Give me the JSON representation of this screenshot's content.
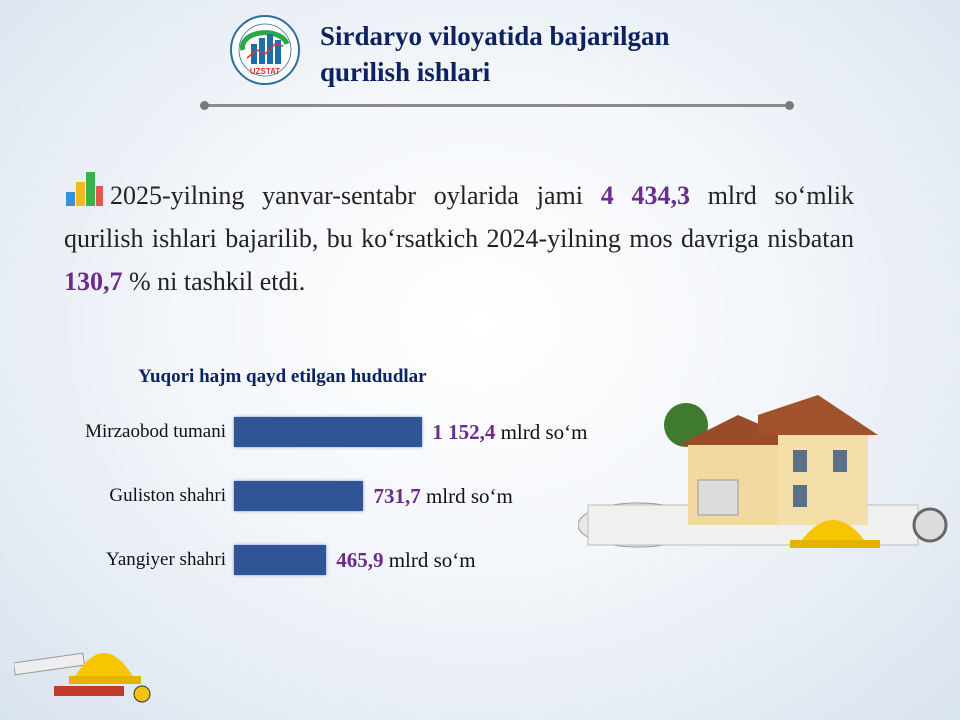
{
  "header": {
    "logo_text": "UZSTAT",
    "logo_ring_text": "SIRDARYO VILOYATI STATISTIKA BOSHQARMASI",
    "title_line1": "Sirdaryo viloyatida bajarilgan",
    "title_line2": "qurilish ishlari"
  },
  "summary": {
    "icon": "bar-chart-icon",
    "part1": "2025-yilning yanvar-sentabr oylarida jami ",
    "total": "4 434,3",
    "part2": " mlrd so‘mlik qurilish ishlari bajarilib, bu ko‘rsatkich 2024-yilning mos davriga nisbatan ",
    "percent": "130,7",
    "part3": " % ni tashkil etdi."
  },
  "colors": {
    "title": "#0d2260",
    "highlight": "#6a2c8f",
    "bar": "#2f5597"
  },
  "chart_data": {
    "type": "bar",
    "orientation": "horizontal",
    "title": "Yuqori hajm qayd etilgan hududlar",
    "categories": [
      "Mirzaobod tumani",
      "Guliston shahri",
      "Yangiyer shahri"
    ],
    "values": [
      1152.4,
      731.7,
      465.9
    ],
    "value_labels": [
      "1 152,4",
      "731,7",
      "465,9"
    ],
    "unit": "mlrd so‘m"
  }
}
